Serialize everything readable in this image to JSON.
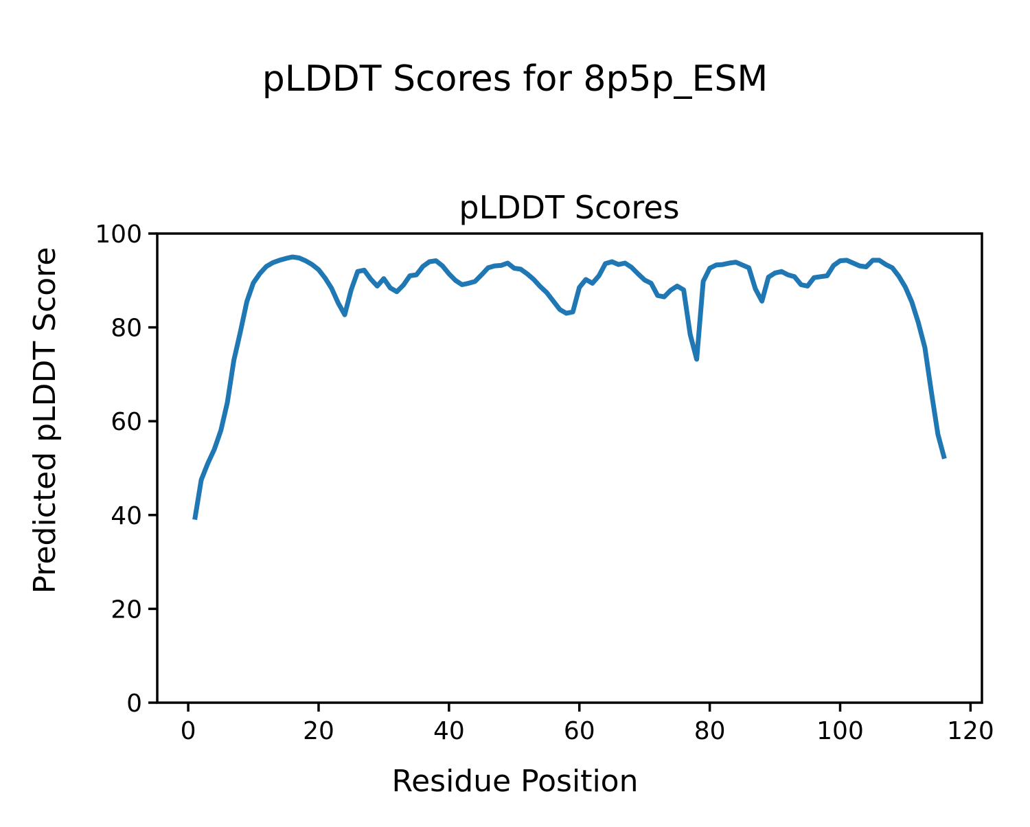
{
  "figure": {
    "suptitle": "pLDDT Scores for 8p5p_ESM",
    "background_color": "#ffffff",
    "text_color": "#000000"
  },
  "axes": {
    "title": "pLDDT Scores",
    "xlabel": "Residue Position",
    "ylabel": "Predicted pLDDT Score"
  },
  "chart_data": {
    "type": "line",
    "title": "pLDDT Scores",
    "xlabel": "Residue Position",
    "ylabel": "Predicted pLDDT Score",
    "grid": false,
    "legend_position": "none",
    "line_color": "#1f77b4",
    "xlim": [
      -4.75,
      121.75
    ],
    "ylim": [
      0,
      100
    ],
    "xticks": [
      0,
      20,
      40,
      60,
      80,
      100,
      120
    ],
    "yticks": [
      0,
      20,
      40,
      60,
      80,
      100
    ],
    "series": [
      {
        "name": "pLDDT",
        "color": "#1f77b4",
        "x": [
          1,
          2,
          3,
          4,
          5,
          6,
          7,
          8,
          9,
          10,
          11,
          12,
          13,
          14,
          15,
          16,
          17,
          18,
          19,
          20,
          21,
          22,
          23,
          24,
          25,
          26,
          27,
          28,
          29,
          30,
          31,
          32,
          33,
          34,
          35,
          36,
          37,
          38,
          39,
          40,
          41,
          42,
          43,
          44,
          45,
          46,
          47,
          48,
          49,
          50,
          51,
          52,
          53,
          54,
          55,
          56,
          57,
          58,
          59,
          60,
          61,
          62,
          63,
          64,
          65,
          66,
          67,
          68,
          69,
          70,
          71,
          72,
          73,
          74,
          75,
          76,
          77,
          78,
          79,
          80,
          81,
          82,
          83,
          84,
          85,
          86,
          87,
          88,
          89,
          90,
          91,
          92,
          93,
          94,
          95,
          96,
          97,
          98,
          99,
          100,
          101,
          102,
          103,
          104,
          105,
          106,
          107,
          108,
          109,
          110,
          111,
          112,
          113,
          114,
          115,
          116
        ],
        "y": [
          39.0,
          47.5,
          51.0,
          54.0,
          58.0,
          64.0,
          73.0,
          79.0,
          85.5,
          89.5,
          91.5,
          93.0,
          93.8,
          94.3,
          94.7,
          95.0,
          94.8,
          94.2,
          93.4,
          92.3,
          90.5,
          88.3,
          85.2,
          82.7,
          88.0,
          91.9,
          92.2,
          90.3,
          88.8,
          90.4,
          88.4,
          87.6,
          89.0,
          91.0,
          91.2,
          93.0,
          94.0,
          94.2,
          93.1,
          91.4,
          90.0,
          89.1,
          89.4,
          89.8,
          91.2,
          92.7,
          93.1,
          93.2,
          93.7,
          92.6,
          92.4,
          91.4,
          90.2,
          88.7,
          87.4,
          85.6,
          83.8,
          83.0,
          83.3,
          88.5,
          90.2,
          89.4,
          91.0,
          93.6,
          94.0,
          93.4,
          93.7,
          92.8,
          91.4,
          90.1,
          89.4,
          86.8,
          86.5,
          87.9,
          88.8,
          88.0,
          78.5,
          73.2,
          89.8,
          92.6,
          93.3,
          93.4,
          93.7,
          93.9,
          93.3,
          92.7,
          88.2,
          85.6,
          90.7,
          91.6,
          91.9,
          91.2,
          90.8,
          89.1,
          88.8,
          90.6,
          90.8,
          91.0,
          93.2,
          94.2,
          94.3,
          93.7,
          93.1,
          92.9,
          94.3,
          94.3,
          93.4,
          92.7,
          90.9,
          88.6,
          85.4,
          81.0,
          75.7,
          66.2,
          57.2,
          52.0
        ]
      }
    ]
  }
}
